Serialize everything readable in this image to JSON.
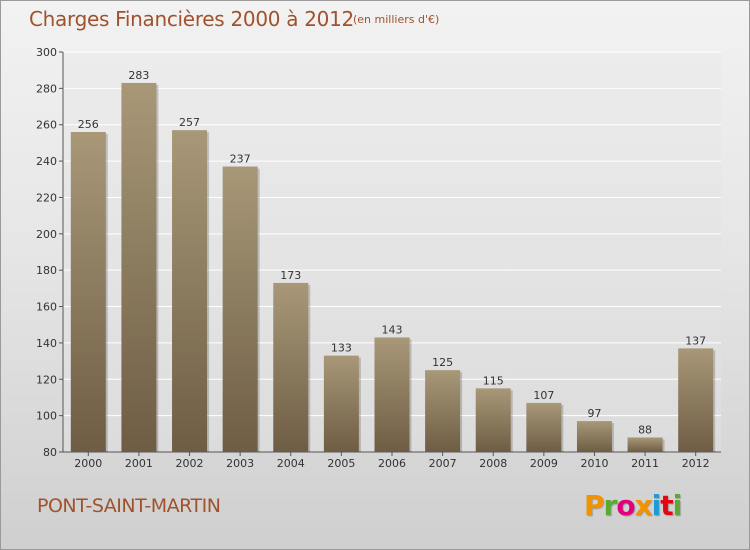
{
  "title": "Charges Financières 2000 à 2012",
  "unit": "(en milliers d'€)",
  "place": "PONT-SAINT-MARTIN",
  "logo": {
    "letters": [
      "P",
      "r",
      "o",
      "x",
      "i",
      "t",
      "i"
    ],
    "colors": [
      "#f39200",
      "#5aaa32",
      "#e2007a",
      "#f39200",
      "#1d9bd7",
      "#e30613",
      "#5aaa32"
    ]
  },
  "colors": {
    "bar_top": "#a89878",
    "bar_bottom": "#6e5d44",
    "title": "#a0522d"
  },
  "chart_data": {
    "type": "bar",
    "categories": [
      "2000",
      "2001",
      "2002",
      "2003",
      "2004",
      "2005",
      "2006",
      "2007",
      "2008",
      "2009",
      "2010",
      "2011",
      "2012"
    ],
    "values": [
      256,
      283,
      257,
      237,
      173,
      133,
      143,
      125,
      115,
      107,
      97,
      88,
      137
    ],
    "ylim": [
      80,
      300
    ],
    "yticks": [
      80,
      100,
      120,
      140,
      160,
      180,
      200,
      220,
      240,
      260,
      280,
      300
    ],
    "grid": true
  }
}
